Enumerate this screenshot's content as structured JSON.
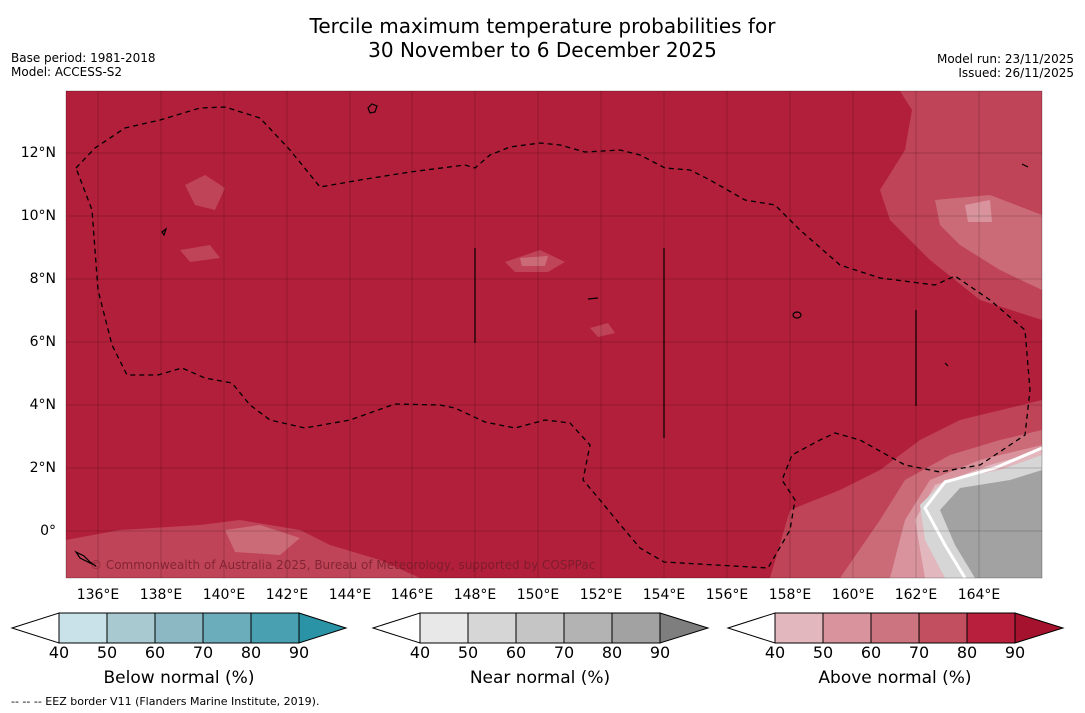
{
  "title_line1": "Tercile maximum temperature probabilities for",
  "title_line2": "30 November to 6 December 2025",
  "meta_left": [
    "Base period: 1981-2018",
    "Model: ACCESS-S2"
  ],
  "meta_right": [
    "Model run: 23/11/2025",
    "Issued: 26/11/2025"
  ],
  "copyright": "© Commonwealth of Australia 2025, Bureau of Meteorology, supported by COSPPac",
  "footer": "--  --  -- EEZ border V11 (Flanders Marine Institute, 2019).",
  "map": {
    "lat_labels": [
      "12°N",
      "10°N",
      "8°N",
      "6°N",
      "4°N",
      "2°N",
      "0°"
    ],
    "lon_labels": [
      "136°E",
      "138°E",
      "140°E",
      "142°E",
      "144°E",
      "146°E",
      "148°E",
      "150°E",
      "152°E",
      "154°E",
      "156°E",
      "158°E",
      "160°E",
      "162°E",
      "164°E"
    ],
    "dominant_category": "Above normal",
    "dominant_probability_range": "80-90%"
  },
  "colorbars": [
    {
      "title": "Below normal (%)",
      "ticks": [
        "40",
        "50",
        "60",
        "70",
        "80",
        "90"
      ],
      "colors": [
        "#ffffff",
        "#c9e2e9",
        "#a9c9d0",
        "#8cb8c4",
        "#6badbb",
        "#49a0b0",
        "#2a93a6"
      ]
    },
    {
      "title": "Near normal (%)",
      "ticks": [
        "40",
        "50",
        "60",
        "70",
        "80",
        "90"
      ],
      "colors": [
        "#ffffff",
        "#e8e8e8",
        "#d6d6d6",
        "#c5c5c5",
        "#b3b3b3",
        "#a2a2a2",
        "#7e7e7e"
      ]
    },
    {
      "title": "Above normal (%)",
      "ticks": [
        "40",
        "50",
        "60",
        "70",
        "80",
        "90"
      ],
      "colors": [
        "#ffffff",
        "#e2b7be",
        "#d8939d",
        "#cc7580",
        "#c24f60",
        "#b71f3c",
        "#a5122d"
      ]
    }
  ],
  "colors": {
    "above_80": "#b21f3a",
    "above_70": "#c24a5c",
    "above_60": "#cc6b78",
    "near_80": "#a2a2a2"
  }
}
